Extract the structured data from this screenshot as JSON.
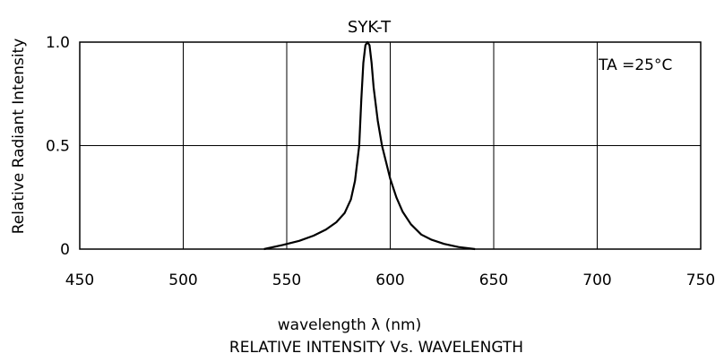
{
  "chart_data": {
    "type": "line",
    "title": "SYK-T",
    "xlabel": "wavelength λ (nm)",
    "ylabel": "Relative Radiant Intensity",
    "caption": "RELATIVE INTENSITY Vs. WAVELENGTH",
    "annotation": "TA =25°C",
    "xlim": [
      450,
      750
    ],
    "ylim": [
      0,
      1.0
    ],
    "x_ticks": [
      450,
      500,
      550,
      600,
      650,
      700,
      750
    ],
    "x_tick_labels": [
      "450",
      "500",
      "550",
      "600",
      "650",
      "700",
      "750"
    ],
    "y_ticks": [
      0,
      0.5,
      1.0
    ],
    "y_tick_labels": [
      "0",
      "0.5",
      "1.0"
    ],
    "grid": true,
    "colors": {
      "line": "#000000",
      "grid": "#000000",
      "background": "#ffffff"
    },
    "series": [
      {
        "x": [
          539,
          548,
          556,
          563,
          569,
          574,
          578,
          581,
          583,
          585,
          586,
          587,
          588,
          589,
          590,
          591,
          592,
          594,
          596,
          598,
          600,
          603,
          606,
          610,
          615,
          620,
          626,
          633,
          641
        ],
        "y": [
          0.0,
          0.02,
          0.04,
          0.065,
          0.095,
          0.13,
          0.175,
          0.24,
          0.33,
          0.5,
          0.72,
          0.9,
          0.985,
          1.0,
          0.985,
          0.9,
          0.78,
          0.62,
          0.5,
          0.42,
          0.34,
          0.25,
          0.18,
          0.12,
          0.07,
          0.045,
          0.025,
          0.01,
          0.0
        ]
      }
    ]
  }
}
